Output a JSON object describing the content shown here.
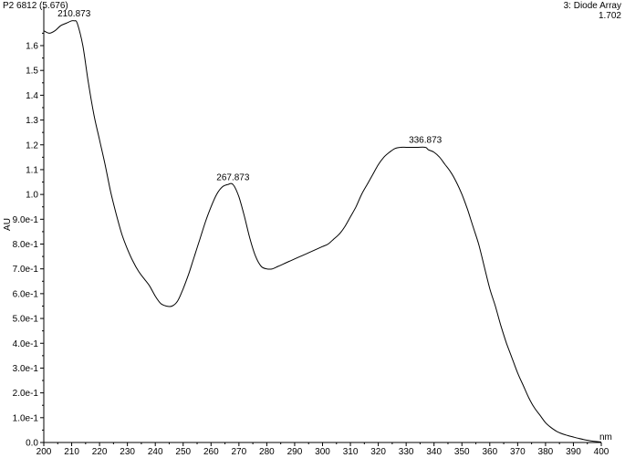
{
  "header": {
    "left": "P2 6812 (5.676)",
    "right": "3: Diode Array",
    "right_value": "1.702"
  },
  "chart_data": {
    "type": "line",
    "ylabel": "AU",
    "xlabel": "nm",
    "xlim": [
      200,
      400
    ],
    "ylim": [
      0.0,
      1.7
    ],
    "x_ticks": [
      200,
      210,
      220,
      230,
      240,
      250,
      260,
      270,
      280,
      290,
      300,
      310,
      320,
      330,
      340,
      350,
      360,
      370,
      380,
      390,
      400
    ],
    "x_tick_labels": [
      "200",
      "210",
      "220",
      "230",
      "240",
      "250",
      "260",
      "270",
      "280",
      "290",
      "300",
      "310",
      "320",
      "330",
      "340",
      "350",
      "360",
      "370",
      "380",
      "390",
      "400"
    ],
    "y_ticks": [
      0.0,
      0.1,
      0.2,
      0.3,
      0.4,
      0.5,
      0.6,
      0.7,
      0.8,
      0.9,
      1.0,
      1.1,
      1.2,
      1.3,
      1.4,
      1.5,
      1.6
    ],
    "y_tick_labels": [
      "0.0",
      "1.0e-1",
      "2.0e-1",
      "3.0e-1",
      "4.0e-1",
      "5.0e-1",
      "6.0e-1",
      "7.0e-1",
      "8.0e-1",
      "9.0e-1",
      "1.0",
      "1.1",
      "1.2",
      "1.3",
      "1.4",
      "1.5",
      "1.6"
    ],
    "series": [
      {
        "color": "#000000",
        "x": [
          200,
          202,
          204,
          206,
          208,
          210,
          210.9,
          212,
          214,
          216,
          218,
          220,
          222,
          224,
          226,
          228,
          230,
          232,
          234,
          236,
          238,
          240,
          242,
          244,
          246,
          248,
          250,
          252,
          254,
          256,
          258,
          260,
          262,
          264,
          266,
          267.9,
          270,
          272,
          274,
          276,
          278,
          280,
          282,
          284,
          286,
          288,
          290,
          292,
          294,
          296,
          298,
          300,
          302,
          304,
          306,
          308,
          310,
          312,
          314,
          316,
          318,
          320,
          322,
          324,
          326,
          328,
          330,
          332,
          334,
          336.9,
          338,
          340,
          342,
          344,
          346,
          348,
          350,
          352,
          354,
          356,
          358,
          360,
          362,
          364,
          366,
          368,
          370,
          372,
          374,
          376,
          378,
          380,
          382,
          384,
          386,
          388,
          390,
          392,
          394,
          396,
          398,
          400
        ],
        "y": [
          1.66,
          1.65,
          1.66,
          1.68,
          1.69,
          1.7,
          1.7,
          1.69,
          1.6,
          1.45,
          1.32,
          1.22,
          1.12,
          1.01,
          0.92,
          0.84,
          0.78,
          0.73,
          0.69,
          0.66,
          0.63,
          0.59,
          0.56,
          0.55,
          0.55,
          0.57,
          0.62,
          0.68,
          0.75,
          0.82,
          0.89,
          0.95,
          1.0,
          1.03,
          1.04,
          1.04,
          0.99,
          0.91,
          0.82,
          0.75,
          0.71,
          0.7,
          0.7,
          0.71,
          0.72,
          0.73,
          0.74,
          0.75,
          0.76,
          0.77,
          0.78,
          0.79,
          0.8,
          0.82,
          0.84,
          0.87,
          0.91,
          0.95,
          1.0,
          1.04,
          1.08,
          1.12,
          1.15,
          1.17,
          1.185,
          1.19,
          1.19,
          1.19,
          1.19,
          1.19,
          1.18,
          1.17,
          1.15,
          1.12,
          1.09,
          1.05,
          1.0,
          0.94,
          0.87,
          0.8,
          0.71,
          0.62,
          0.55,
          0.47,
          0.4,
          0.34,
          0.28,
          0.23,
          0.18,
          0.14,
          0.11,
          0.08,
          0.06,
          0.045,
          0.035,
          0.028,
          0.022,
          0.016,
          0.011,
          0.007,
          0.004,
          0.002
        ]
      }
    ],
    "peaks": [
      {
        "x": 210.873,
        "y": 1.7,
        "label": "210.873"
      },
      {
        "x": 267.873,
        "y": 1.04,
        "label": "267.873"
      },
      {
        "x": 336.873,
        "y": 1.19,
        "label": "336.873"
      }
    ]
  }
}
